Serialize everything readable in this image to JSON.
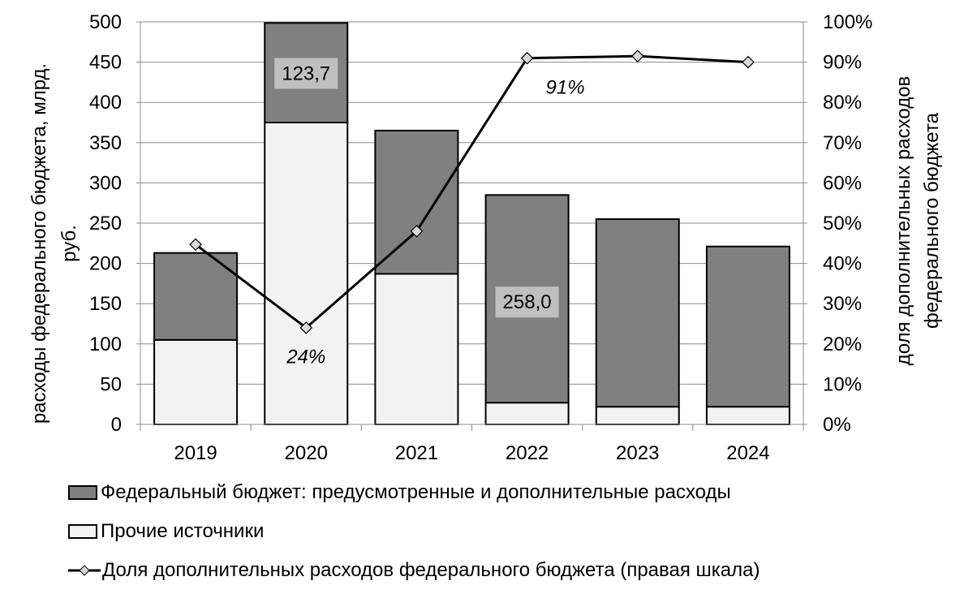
{
  "chart_data": {
    "type": "bar",
    "stacked": true,
    "categories": [
      "2019",
      "2020",
      "2021",
      "2022",
      "2023",
      "2024"
    ],
    "series": [
      {
        "name": "Прочие источники",
        "values": [
          105,
          375,
          187,
          27,
          22,
          22
        ],
        "color": "#f2f2f2"
      },
      {
        "name": "Федеральный бюджет: предусмотренные и дополнительные расходы",
        "values": [
          108,
          123.7,
          178,
          258.0,
          233,
          199
        ],
        "color": "#808080"
      }
    ],
    "line_series": {
      "name": "Доля дополнительных расходов федерального бюджета (правая шкала)",
      "values": [
        44.7,
        24,
        48,
        91,
        91.5,
        90
      ],
      "axis": "right",
      "color": "#000000",
      "marker_color": "#d9d9d9"
    },
    "ylabel": "расходы федерального бюджета, млрд. руб.",
    "ylabel_lines": [
      "расходы федерального бюджета, млрд.",
      "руб."
    ],
    "ylabel_right": "доля дополнительных расходов федерального бюджета",
    "ylabel_right_lines": [
      "доля дополнительных расходов",
      "федерального бюджета"
    ],
    "ylim": [
      0,
      500
    ],
    "y_ticks": [
      "0",
      "50",
      "100",
      "150",
      "200",
      "250",
      "300",
      "350",
      "400",
      "450",
      "500"
    ],
    "ylim_right": [
      0,
      100
    ],
    "y_right_ticks": [
      "0%",
      "10%",
      "20%",
      "30%",
      "40%",
      "50%",
      "60%",
      "70%",
      "80%",
      "90%",
      "100%"
    ],
    "grid": true,
    "legend_position": "bottom",
    "annotations": [
      {
        "text": "123,7",
        "category": "2020",
        "series": "Федеральный бюджет: предусмотренные и дополнительные расходы",
        "y": 436
      },
      {
        "text": "258,0",
        "category": "2022",
        "series": "Федеральный бюджет: предусмотренные и дополнительные расходы",
        "y": 152
      },
      {
        "text": "24%",
        "category": "2020",
        "series": "Доля дополнительных расходов федерального бюджета (правая шкала)",
        "y": 17
      },
      {
        "text": "91%",
        "category": "2022",
        "series": "Доля дополнительных расходов федерального бюджета (правая шкала)",
        "y": 84
      }
    ]
  }
}
